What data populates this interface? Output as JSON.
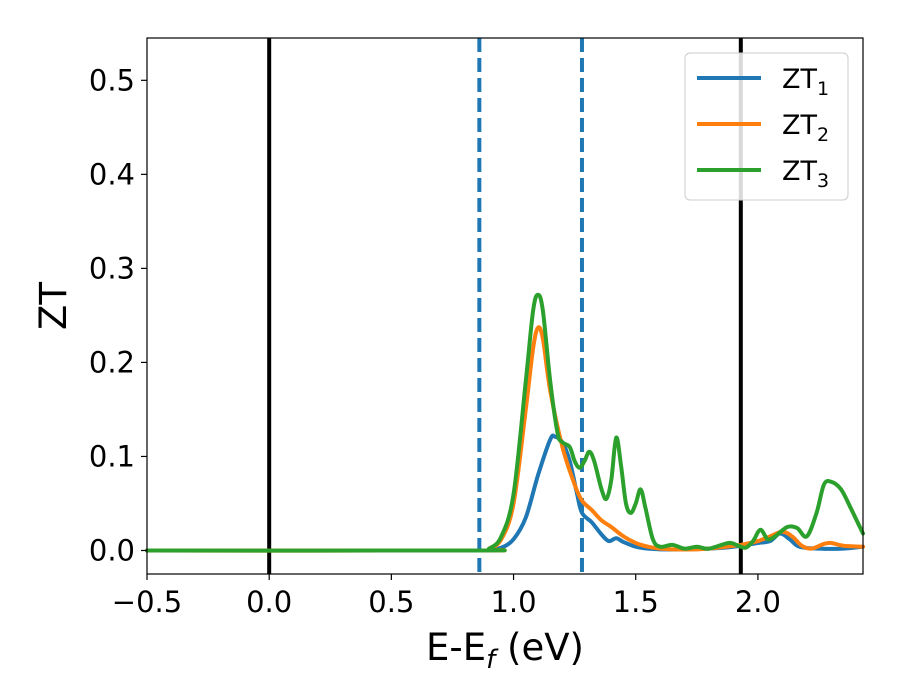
{
  "chart_data": {
    "type": "line",
    "title": "",
    "xlabel": {
      "main": "E-E",
      "sub": "f",
      "unit": " (eV)"
    },
    "ylabel": "ZT",
    "xlim": [
      -0.5,
      2.43
    ],
    "ylim": [
      -0.025,
      0.545
    ],
    "x_ticks": [
      {
        "value": -0.5,
        "label": "−0.5"
      },
      {
        "value": 0.0,
        "label": "0.0"
      },
      {
        "value": 0.5,
        "label": "0.5"
      },
      {
        "value": 1.0,
        "label": "1.0"
      },
      {
        "value": 1.5,
        "label": "1.5"
      },
      {
        "value": 2.0,
        "label": "2.0"
      }
    ],
    "y_ticks": [
      {
        "value": 0.0,
        "label": "0.0"
      },
      {
        "value": 0.1,
        "label": "0.1"
      },
      {
        "value": 0.2,
        "label": "0.2"
      },
      {
        "value": 0.3,
        "label": "0.3"
      },
      {
        "value": 0.4,
        "label": "0.4"
      },
      {
        "value": 0.5,
        "label": "0.5"
      }
    ],
    "grid": false,
    "legend_position": "top-right",
    "vlines": [
      {
        "x": 0.0,
        "color": "#000000",
        "style": "solid"
      },
      {
        "x": 0.86,
        "color": "#1f77b4",
        "style": "dashed"
      },
      {
        "x": 1.28,
        "color": "#1f77b4",
        "style": "dashed"
      },
      {
        "x": 1.93,
        "color": "#000000",
        "style": "solid"
      }
    ],
    "series": [
      {
        "name": "ZT",
        "sub": "1",
        "color": "#1f77b4",
        "points": [
          [
            -0.5,
            0
          ],
          [
            0.8,
            0
          ],
          [
            0.9,
            0.001
          ],
          [
            0.95,
            0.003
          ],
          [
            1.0,
            0.012
          ],
          [
            1.05,
            0.035
          ],
          [
            1.1,
            0.08
          ],
          [
            1.15,
            0.118
          ],
          [
            1.17,
            0.121
          ],
          [
            1.2,
            0.115
          ],
          [
            1.23,
            0.095
          ],
          [
            1.26,
            0.06
          ],
          [
            1.28,
            0.04
          ],
          [
            1.32,
            0.03
          ],
          [
            1.36,
            0.017
          ],
          [
            1.39,
            0.01
          ],
          [
            1.42,
            0.013
          ],
          [
            1.45,
            0.009
          ],
          [
            1.5,
            0.004
          ],
          [
            1.55,
            0.002
          ],
          [
            1.65,
            0.001
          ],
          [
            1.8,
            0.002
          ],
          [
            1.9,
            0.004
          ],
          [
            2.0,
            0.008
          ],
          [
            2.05,
            0.01
          ],
          [
            2.09,
            0.018
          ],
          [
            2.13,
            0.012
          ],
          [
            2.17,
            0.004
          ],
          [
            2.25,
            0.002
          ],
          [
            2.35,
            0.002
          ],
          [
            2.43,
            0.004
          ]
        ]
      },
      {
        "name": "ZT",
        "sub": "2",
        "color": "#ff7f0e",
        "points": [
          [
            -0.5,
            0
          ],
          [
            0.85,
            0
          ],
          [
            0.9,
            0.002
          ],
          [
            0.95,
            0.012
          ],
          [
            1.0,
            0.05
          ],
          [
            1.05,
            0.15
          ],
          [
            1.08,
            0.215
          ],
          [
            1.1,
            0.237
          ],
          [
            1.12,
            0.225
          ],
          [
            1.15,
            0.17
          ],
          [
            1.2,
            0.11
          ],
          [
            1.25,
            0.07
          ],
          [
            1.28,
            0.053
          ],
          [
            1.32,
            0.043
          ],
          [
            1.36,
            0.032
          ],
          [
            1.4,
            0.025
          ],
          [
            1.45,
            0.015
          ],
          [
            1.5,
            0.008
          ],
          [
            1.55,
            0.004
          ],
          [
            1.6,
            0.002
          ],
          [
            1.7,
            0.001
          ],
          [
            1.8,
            0.002
          ],
          [
            1.9,
            0.005
          ],
          [
            1.95,
            0.007
          ],
          [
            2.0,
            0.01
          ],
          [
            2.05,
            0.015
          ],
          [
            2.1,
            0.02
          ],
          [
            2.14,
            0.015
          ],
          [
            2.18,
            0.005
          ],
          [
            2.22,
            0.002
          ],
          [
            2.27,
            0.007
          ],
          [
            2.3,
            0.008
          ],
          [
            2.35,
            0.005
          ],
          [
            2.43,
            0.004
          ]
        ]
      },
      {
        "name": "ZT",
        "sub": "3",
        "color": "#2ca02c",
        "points": [
          [
            -0.5,
            0
          ],
          [
            0.85,
            0
          ],
          [
            0.9,
            0.002
          ],
          [
            0.95,
            0.015
          ],
          [
            1.0,
            0.06
          ],
          [
            1.05,
            0.18
          ],
          [
            1.08,
            0.255
          ],
          [
            1.1,
            0.272
          ],
          [
            1.12,
            0.255
          ],
          [
            1.15,
            0.18
          ],
          [
            1.18,
            0.125
          ],
          [
            1.2,
            0.115
          ],
          [
            1.23,
            0.11
          ],
          [
            1.25,
            0.095
          ],
          [
            1.27,
            0.088
          ],
          [
            1.29,
            0.095
          ],
          [
            1.31,
            0.105
          ],
          [
            1.33,
            0.095
          ],
          [
            1.36,
            0.065
          ],
          [
            1.38,
            0.055
          ],
          [
            1.4,
            0.075
          ],
          [
            1.42,
            0.12
          ],
          [
            1.44,
            0.09
          ],
          [
            1.46,
            0.05
          ],
          [
            1.48,
            0.04
          ],
          [
            1.5,
            0.05
          ],
          [
            1.52,
            0.065
          ],
          [
            1.54,
            0.045
          ],
          [
            1.57,
            0.012
          ],
          [
            1.6,
            0.004
          ],
          [
            1.65,
            0.006
          ],
          [
            1.7,
            0.002
          ],
          [
            1.75,
            0.004
          ],
          [
            1.8,
            0.002
          ],
          [
            1.88,
            0.008
          ],
          [
            1.92,
            0.005
          ],
          [
            1.95,
            0.003
          ],
          [
            1.98,
            0.01
          ],
          [
            2.01,
            0.022
          ],
          [
            2.04,
            0.012
          ],
          [
            2.07,
            0.015
          ],
          [
            2.12,
            0.025
          ],
          [
            2.16,
            0.024
          ],
          [
            2.2,
            0.015
          ],
          [
            2.24,
            0.04
          ],
          [
            2.27,
            0.07
          ],
          [
            2.3,
            0.073
          ],
          [
            2.34,
            0.065
          ],
          [
            2.38,
            0.045
          ],
          [
            2.43,
            0.018
          ]
        ]
      }
    ]
  }
}
